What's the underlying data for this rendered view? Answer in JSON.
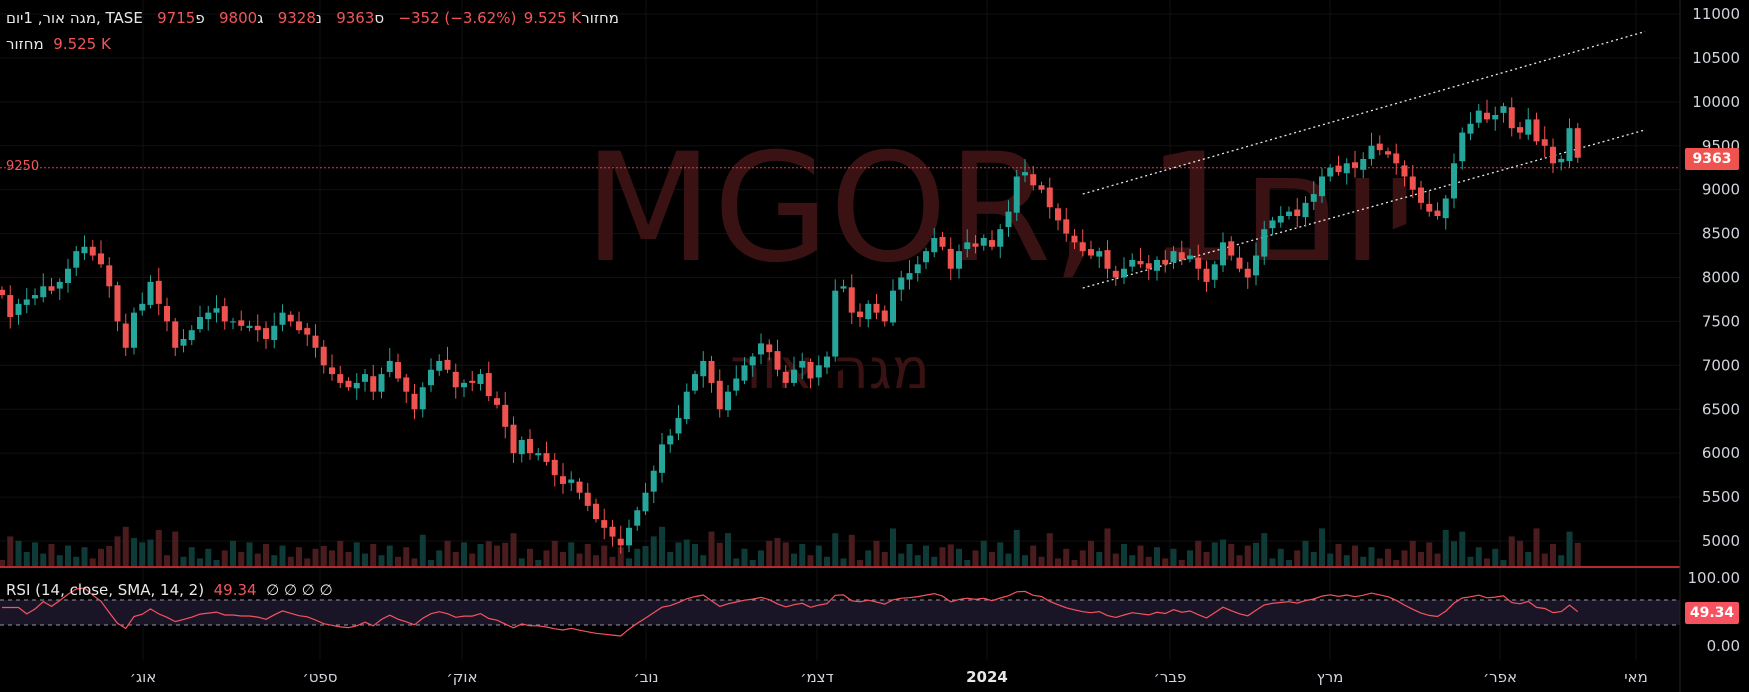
{
  "header": {
    "line1_title": "מגה אור, 1יום, TASE",
    "open_label": "פ",
    "open_value": "9715",
    "high_label": "ג",
    "high_value": "9800",
    "low_label": "נ",
    "low_value": "9328",
    "close_label": "ס",
    "close_value": "9363",
    "change_text": "−352 (−3.62%)",
    "vol_label": "מחזור",
    "vol_value": "9.525 K",
    "line2_vol_label": "מחזור",
    "line2_vol_value": "9.525 K"
  },
  "watermark": {
    "main": "MGOR, 1יום",
    "sub": "מגה אור"
  },
  "level_line": {
    "label": "9250",
    "value": 9250
  },
  "last_price_badge": "9363",
  "rsi": {
    "legend_name": "RSI (14, close, SMA, 14, 2)",
    "legend_value": "49.34",
    "legend_extras": "∅ ∅ ∅ ∅",
    "badge": "49.34",
    "axis_top": "100.00",
    "axis_bottom": "0.00"
  },
  "colors": {
    "up": "#26a69a",
    "down": "#ef5350",
    "background": "#000000",
    "level": "#f23645",
    "rsi_line": "#f7525f",
    "watermark": "#3a1214"
  },
  "chart_data": {
    "type": "candlestick",
    "title": "מגה אור, 1יום, TASE",
    "ylim": [
      4700,
      11100
    ],
    "y_ticks": [
      "11000",
      "10500",
      "10000",
      "9500",
      "9000",
      "8500",
      "8000",
      "7500",
      "7000",
      "6500",
      "6000",
      "5500",
      "5000"
    ],
    "x_tick_labels": [
      "אוג׳",
      "ספט׳",
      "אוק׳",
      "נוב׳",
      "דצמ׳",
      "2024",
      "פבר׳",
      "מרץ",
      "אפר׳",
      "מאי"
    ],
    "closes": [
      7800,
      7550,
      7700,
      7750,
      7800,
      7900,
      7850,
      7950,
      8100,
      8300,
      8350,
      8250,
      8150,
      7900,
      7500,
      7200,
      7600,
      7700,
      7950,
      7700,
      7500,
      7200,
      7300,
      7400,
      7550,
      7600,
      7650,
      7500,
      7500,
      7450,
      7450,
      7400,
      7300,
      7450,
      7600,
      7500,
      7400,
      7350,
      7200,
      7000,
      6900,
      6800,
      6750,
      6800,
      6900,
      6700,
      6900,
      7050,
      6850,
      6700,
      6500,
      6750,
      6950,
      7050,
      6950,
      6750,
      6800,
      6800,
      6900,
      6650,
      6550,
      6300,
      6000,
      6150,
      6000,
      6000,
      5900,
      5750,
      5650,
      5700,
      5550,
      5400,
      5250,
      5150,
      5050,
      4950,
      5150,
      5350,
      5550,
      5800,
      6100,
      6200,
      6400,
      6700,
      6900,
      7050,
      6800,
      6500,
      6700,
      6850,
      7000,
      7100,
      7250,
      7150,
      6950,
      6800,
      6950,
      7050,
      6850,
      7000,
      7100,
      7850,
      7900,
      7600,
      7550,
      7700,
      7600,
      7500,
      7850,
      8000,
      8050,
      8150,
      8300,
      8450,
      8350,
      8100,
      8300,
      8400,
      8350,
      8450,
      8350,
      8550,
      8750,
      9150,
      9200,
      9050,
      9000,
      8800,
      8650,
      8500,
      8400,
      8300,
      8250,
      8300,
      8100,
      8000,
      8100,
      8200,
      8150,
      8100,
      8200,
      8150,
      8300,
      8200,
      8250,
      8100,
      7950,
      8150,
      8400,
      8250,
      8100,
      8000,
      8250,
      8550,
      8650,
      8700,
      8750,
      8700,
      8850,
      8950,
      9150,
      9250,
      9200,
      9300,
      9250,
      9350,
      9500,
      9450,
      9400,
      9300,
      9150,
      9000,
      8850,
      8750,
      8700,
      8900,
      9300,
      9650,
      9750,
      9900,
      9800,
      9850,
      9950,
      9700,
      9650,
      9800,
      9550,
      9500,
      9300,
      9350,
      9700,
      9363
    ]
  }
}
